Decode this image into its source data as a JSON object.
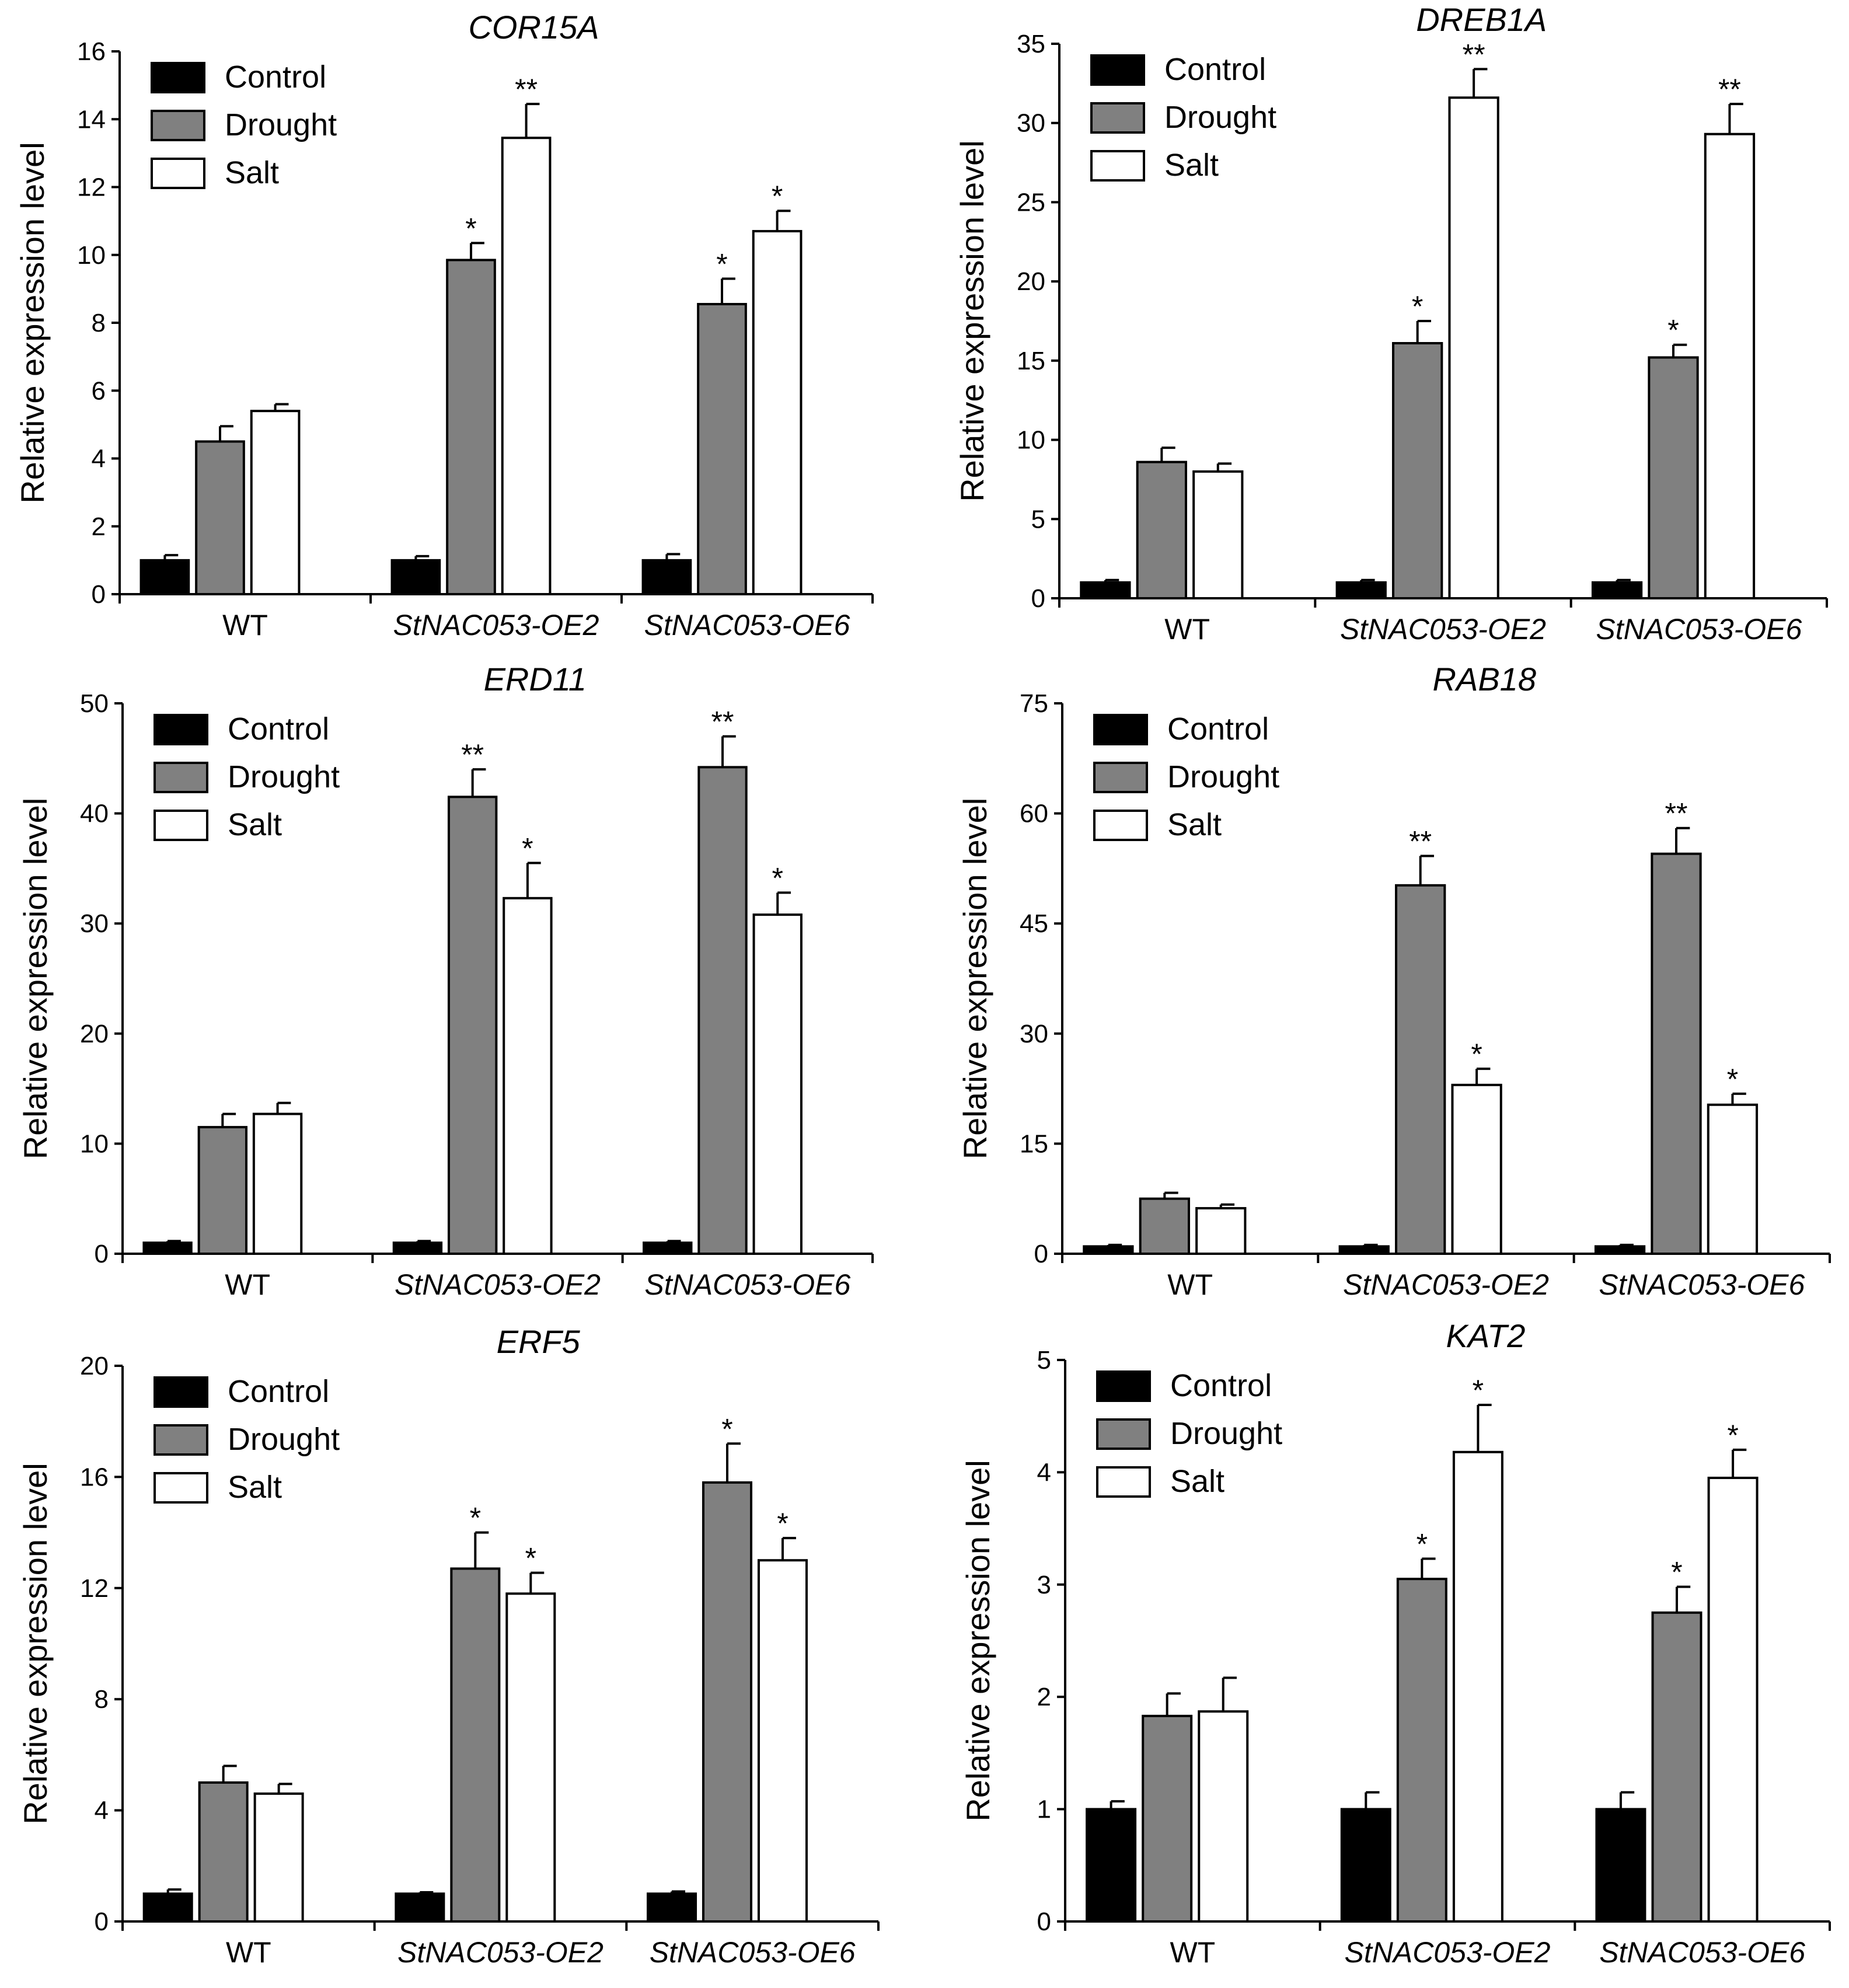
{
  "chart_data": [
    {
      "type": "bar",
      "title": "COR15A",
      "ylabel": "Relative expression level",
      "ylim": [
        0,
        16
      ],
      "yticks": [
        "0",
        "2",
        "4",
        "6",
        "8",
        "10",
        "12",
        "14",
        "16"
      ],
      "categories": [
        "WT",
        "StNAC053-OE2",
        "StNAC053-OE6"
      ],
      "series": [
        {
          "name": "Control",
          "color": "#000000",
          "values": [
            1.0,
            1.0,
            1.0
          ],
          "errors": [
            0.15,
            0.12,
            0.18
          ],
          "significance": [
            "",
            "",
            ""
          ]
        },
        {
          "name": "Drought",
          "color": "#808080",
          "values": [
            4.5,
            9.85,
            8.55
          ],
          "errors": [
            0.45,
            0.5,
            0.75
          ],
          "significance": [
            "",
            "*",
            "*"
          ]
        },
        {
          "name": "Salt",
          "color": "#ffffff",
          "values": [
            5.4,
            13.45,
            10.7
          ],
          "errors": [
            0.2,
            1.0,
            0.6
          ],
          "significance": [
            "",
            "**",
            "*"
          ]
        }
      ]
    },
    {
      "type": "bar",
      "title": "DREB1A",
      "ylabel": "Relative expression level",
      "ylim": [
        0,
        35
      ],
      "yticks": [
        "0",
        "5",
        "10",
        "15",
        "20",
        "25",
        "30",
        "35"
      ],
      "categories": [
        "WT",
        "StNAC053-OE2",
        "StNAC053-OE6"
      ],
      "series": [
        {
          "name": "Control",
          "color": "#000000",
          "values": [
            1.0,
            1.0,
            1.0
          ],
          "errors": [
            0.15,
            0.15,
            0.15
          ],
          "significance": [
            "",
            "",
            ""
          ]
        },
        {
          "name": "Drought",
          "color": "#808080",
          "values": [
            8.6,
            16.1,
            15.2
          ],
          "errors": [
            0.9,
            1.4,
            0.8
          ],
          "significance": [
            "",
            "*",
            "*"
          ]
        },
        {
          "name": "Salt",
          "color": "#ffffff",
          "values": [
            8.0,
            31.6,
            29.3
          ],
          "errors": [
            0.5,
            1.8,
            1.9
          ],
          "significance": [
            "",
            "**",
            "**"
          ]
        }
      ]
    },
    {
      "type": "bar",
      "title": "ERD11",
      "ylabel": "Relative expression level",
      "ylim": [
        0,
        50
      ],
      "yticks": [
        "0",
        "10",
        "20",
        "30",
        "40",
        "50"
      ],
      "categories": [
        "WT",
        "StNAC053-OE2",
        "StNAC053-OE6"
      ],
      "series": [
        {
          "name": "Control",
          "color": "#000000",
          "values": [
            1.0,
            1.0,
            1.0
          ],
          "errors": [
            0.15,
            0.15,
            0.15
          ],
          "significance": [
            "",
            "",
            ""
          ]
        },
        {
          "name": "Drought",
          "color": "#808080",
          "values": [
            11.5,
            41.5,
            44.2
          ],
          "errors": [
            1.2,
            2.5,
            2.8
          ],
          "significance": [
            "",
            "**",
            "**"
          ]
        },
        {
          "name": "Salt",
          "color": "#ffffff",
          "values": [
            12.7,
            32.3,
            30.8
          ],
          "errors": [
            1.0,
            3.2,
            2.0
          ],
          "significance": [
            "",
            "*",
            "*"
          ]
        }
      ]
    },
    {
      "type": "bar",
      "title": "RAB18",
      "ylabel": "Relative expression level",
      "ylim": [
        0,
        75
      ],
      "yticks": [
        "0",
        "15",
        "30",
        "45",
        "60",
        "75"
      ],
      "categories": [
        "WT",
        "StNAC053-OE2",
        "StNAC053-OE6"
      ],
      "series": [
        {
          "name": "Control",
          "color": "#000000",
          "values": [
            1.0,
            1.0,
            1.0
          ],
          "errors": [
            0.2,
            0.2,
            0.2
          ],
          "significance": [
            "",
            "",
            ""
          ]
        },
        {
          "name": "Drought",
          "color": "#808080",
          "values": [
            7.5,
            50.2,
            54.5
          ],
          "errors": [
            0.8,
            4.0,
            3.5
          ],
          "significance": [
            "",
            "**",
            "**"
          ]
        },
        {
          "name": "Salt",
          "color": "#ffffff",
          "values": [
            6.2,
            23.0,
            20.3
          ],
          "errors": [
            0.5,
            2.2,
            1.5
          ],
          "significance": [
            "",
            "*",
            "*"
          ]
        }
      ]
    },
    {
      "type": "bar",
      "title": "ERF5",
      "ylabel": "Relative expression level",
      "ylim": [
        0,
        20
      ],
      "yticks": [
        "0",
        "4",
        "8",
        "12",
        "16",
        "20"
      ],
      "categories": [
        "WT",
        "StNAC053-OE2",
        "StNAC053-OE6"
      ],
      "series": [
        {
          "name": "Control",
          "color": "#000000",
          "values": [
            1.0,
            1.0,
            1.0
          ],
          "errors": [
            0.15,
            0.05,
            0.08
          ],
          "significance": [
            "",
            "",
            ""
          ]
        },
        {
          "name": "Drought",
          "color": "#808080",
          "values": [
            5.0,
            12.7,
            15.8
          ],
          "errors": [
            0.6,
            1.3,
            1.4
          ],
          "significance": [
            "",
            "*",
            "*"
          ]
        },
        {
          "name": "Salt",
          "color": "#ffffff",
          "values": [
            4.6,
            11.8,
            13.0
          ],
          "errors": [
            0.35,
            0.75,
            0.8
          ],
          "significance": [
            "",
            "*",
            "*"
          ]
        }
      ]
    },
    {
      "type": "bar",
      "title": "KAT2",
      "ylabel": "Relative expression level",
      "ylim": [
        0,
        5
      ],
      "yticks": [
        "0",
        "1",
        "2",
        "3",
        "4",
        "5"
      ],
      "categories": [
        "WT",
        "StNAC053-OE2",
        "StNAC053-OE6"
      ],
      "series": [
        {
          "name": "Control",
          "color": "#000000",
          "values": [
            1.0,
            1.0,
            1.0
          ],
          "errors": [
            0.07,
            0.15,
            0.15
          ],
          "significance": [
            "",
            "",
            ""
          ]
        },
        {
          "name": "Drought",
          "color": "#808080",
          "values": [
            1.83,
            3.05,
            2.75
          ],
          "errors": [
            0.2,
            0.18,
            0.23
          ],
          "significance": [
            "",
            "*",
            "*"
          ]
        },
        {
          "name": "Salt",
          "color": "#ffffff",
          "values": [
            1.87,
            4.18,
            3.95
          ],
          "errors": [
            0.3,
            0.42,
            0.25
          ],
          "significance": [
            "",
            "*",
            "*"
          ]
        }
      ]
    }
  ]
}
